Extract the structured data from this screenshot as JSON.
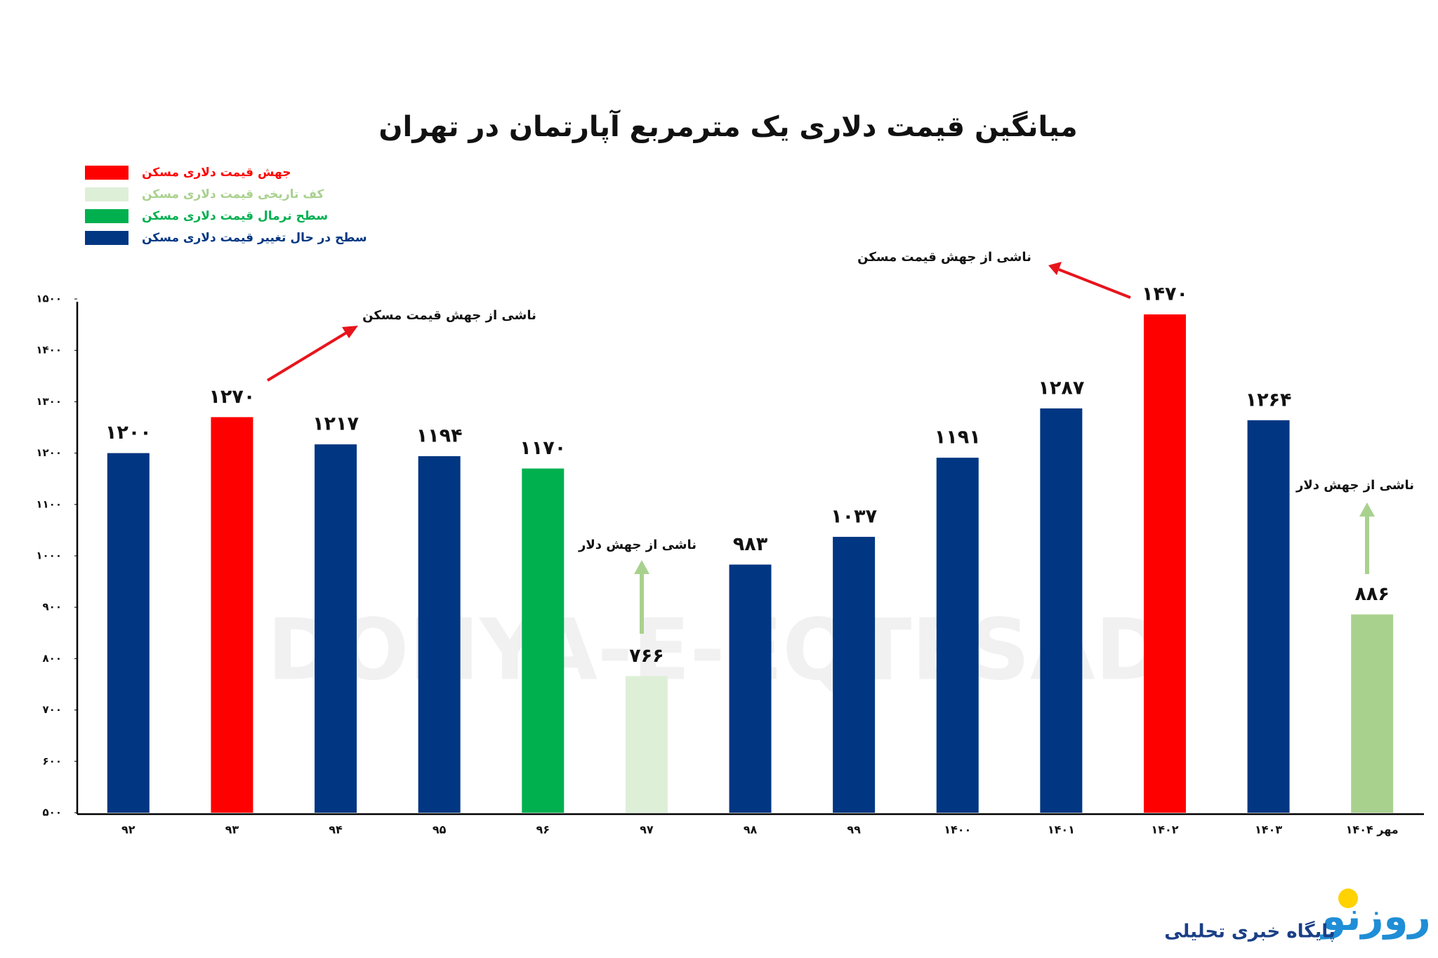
{
  "chart_data": {
    "type": "bar",
    "title": "میانگین قیمت دلاری یک مترمربع آپارتمان در تهران",
    "categories": [
      "۹۲",
      "۹۳",
      "۹۴",
      "۹۵",
      "۹۶",
      "۹۷",
      "۹۸",
      "۹۹",
      "۱۴۰۰",
      "۱۴۰۱",
      "۱۴۰۲",
      "۱۴۰۳",
      "مهر ۱۴۰۴"
    ],
    "values": [
      1200,
      1270,
      1217,
      1194,
      1170,
      766,
      983,
      1037,
      1191,
      1287,
      1470,
      1264,
      886
    ],
    "value_labels": [
      "۱۲۰۰",
      "۱۲۷۰",
      "۱۲۱۷",
      "۱۱۹۴",
      "۱۱۷۰",
      "۷۶۶",
      "۹۸۳",
      "۱۰۳۷",
      "۱۱۹۱",
      "۱۲۸۷",
      "۱۴۷۰",
      "۱۲۶۴",
      "۸۸۶"
    ],
    "colors": [
      "#013682",
      "#fe0000",
      "#013682",
      "#013682",
      "#00b04f",
      "#deefd8",
      "#013682",
      "#013682",
      "#013682",
      "#013682",
      "#fe0000",
      "#013682",
      "#a9d18e"
    ],
    "legend": [
      {
        "label": "جهش قیمت دلاری مسکن",
        "color": "#fe0000"
      },
      {
        "label": "کف تاریخی قیمت دلاری مسکن",
        "color": "#deefd8"
      },
      {
        "label": "سطح نرمال قیمت دلاری مسکن",
        "color": "#00b04f"
      },
      {
        "label": "سطح در حال تغییر قیمت دلاری مسکن",
        "color": "#013682"
      }
    ],
    "ylim": [
      500,
      1500
    ],
    "yticks": [
      {
        "value": 500,
        "label": "۵۰۰"
      },
      {
        "value": 600,
        "label": "۶۰۰"
      },
      {
        "value": 700,
        "label": "۷۰۰"
      },
      {
        "value": 800,
        "label": "۸۰۰"
      },
      {
        "value": 900,
        "label": "۹۰۰"
      },
      {
        "value": 1000,
        "label": "۱۰۰۰"
      },
      {
        "value": 1100,
        "label": "۱۱۰۰"
      },
      {
        "value": 1200,
        "label": "۱۲۰۰"
      },
      {
        "value": 1300,
        "label": "۱۳۰۰"
      },
      {
        "value": 1400,
        "label": "۱۴۰۰"
      },
      {
        "value": 1500,
        "label": "۱۵۰۰"
      }
    ],
    "grid": false,
    "annotations": [
      "ناشی از جهش قیمت مسکن",
      "ناشی از جهش قیمت مسکن",
      "ناشی از جهش دلار",
      "ناشی از جهش دلار"
    ],
    "watermark": "DONYA-E-EQTESAD"
  },
  "footer": {
    "logo": "روزنو",
    "tagline": "پایگاه خبری تحلیلی"
  }
}
